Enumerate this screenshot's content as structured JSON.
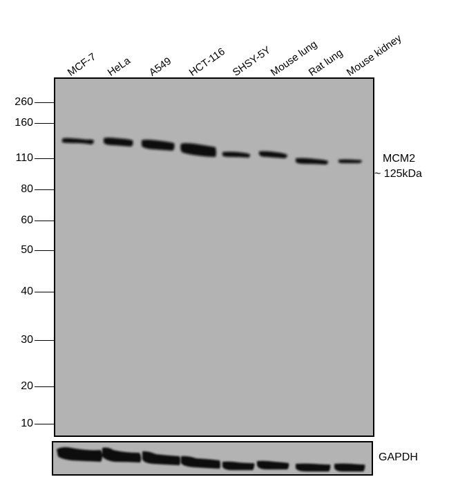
{
  "lanes": [
    "MCF-7",
    "HeLa",
    "A549",
    "HCT-116",
    "SHSY-5Y",
    "Mouse lung",
    "Rat lung",
    "Mouse kidney"
  ],
  "mw_markers": [
    "260",
    "160",
    "110",
    "80",
    "60",
    "50",
    "40",
    "30",
    "20",
    "10"
  ],
  "target": {
    "name": "MCM2",
    "size": "~ 125kDa"
  },
  "loading_control": "GAPDH",
  "colors": {
    "membrane": "#b3b3b3",
    "band": "#111111"
  }
}
